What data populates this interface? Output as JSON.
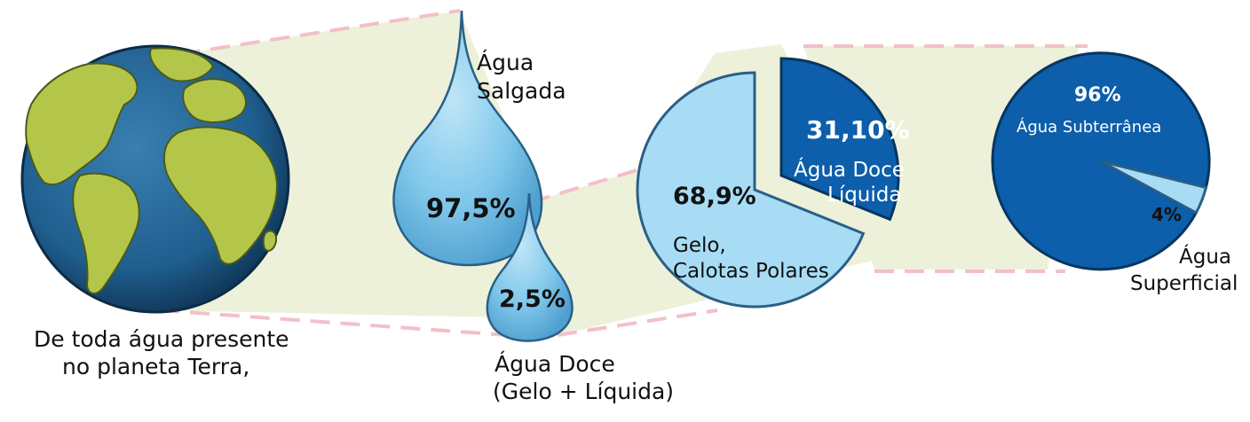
{
  "intro_text": {
    "line1": "De toda água presente",
    "line2": "no planeta Terra,"
  },
  "salt_water": {
    "label_line1": "Água",
    "label_line2": "Salgada",
    "percent": "97,5%",
    "value": 97.5
  },
  "fresh_water": {
    "percent": "2,5%",
    "value": 2.5,
    "label_line1": "Água Doce",
    "label_line2": "(Gelo + Líquida)"
  },
  "fresh_water_pie": {
    "ice_percent": "68,9%",
    "ice_label_line1": "Gelo,",
    "ice_label_line2": "Calotas Polares",
    "liquid_percent": "31,10%",
    "liquid_label_line1": "Água Doce",
    "liquid_label_line2": "Líquida"
  },
  "liquid_water_pie": {
    "groundwater_percent": "96%",
    "groundwater_label": "Água Subterrânea",
    "surface_percent": "4%",
    "surface_label_line1": "Água",
    "surface_label_line2": "Superficial"
  },
  "colors": {
    "ocean": "#1f5f8f",
    "land": "#b4c64a",
    "drop": "#7ec6ea",
    "ice_slice": "#a8dcf5",
    "liquid_slice": "#0d5eab",
    "zoom_band": "#edf1d9",
    "zoom_dash": "#f2c0c8"
  },
  "chart_data": [
    {
      "type": "pie",
      "title": "",
      "series": [
        {
          "label": "Água Salgada",
          "value": 97.5
        },
        {
          "label": "Água Doce (Gelo + Líquida)",
          "value": 2.5
        }
      ]
    },
    {
      "type": "pie",
      "title": "",
      "series": [
        {
          "label": "Gelo, Calotas Polares",
          "value": 68.9
        },
        {
          "label": "Água Doce Líquida",
          "value": 31.1
        }
      ]
    },
    {
      "type": "pie",
      "title": "",
      "series": [
        {
          "label": "Água Subterrânea",
          "value": 96
        },
        {
          "label": "Água Superficial",
          "value": 4
        }
      ]
    }
  ]
}
